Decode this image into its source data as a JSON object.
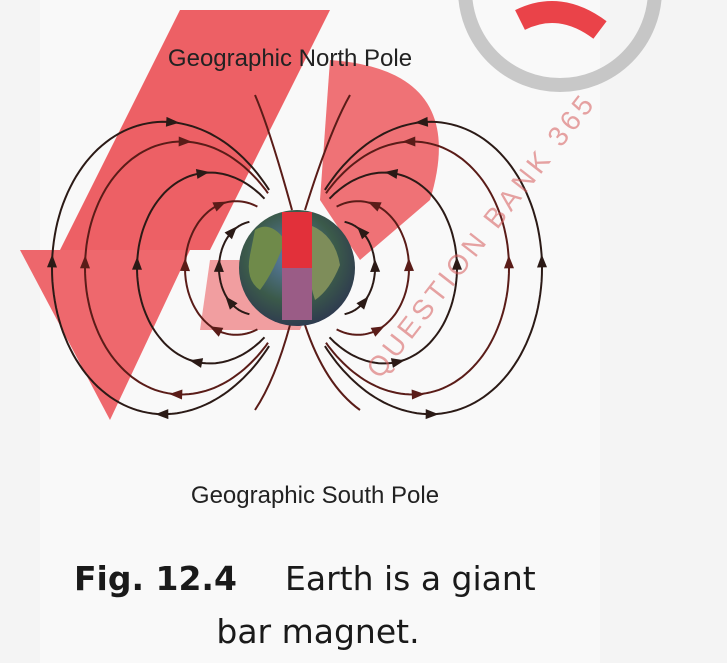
{
  "labels": {
    "north": "Geographic North Pole",
    "south": "Geographic South Pole"
  },
  "caption": {
    "number": "Fig. 12.4",
    "lines": [
      "Earth is a giant",
      "bar magnet."
    ]
  },
  "watermark": "QUESTION BANK 365"
}
